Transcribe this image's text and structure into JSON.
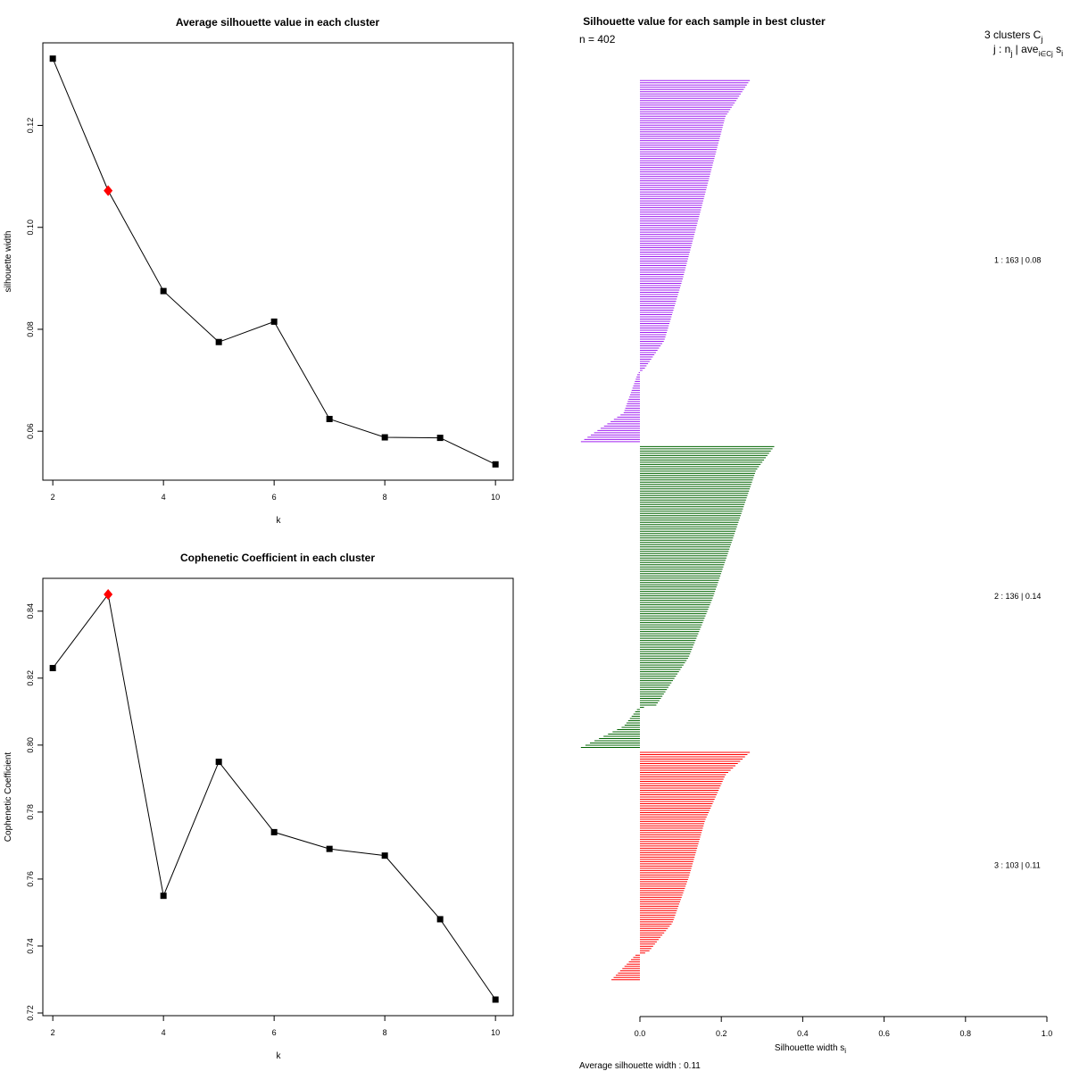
{
  "chart_data": [
    {
      "type": "line",
      "title": "Average silhouette value in each cluster",
      "xlabel": "k",
      "ylabel": "silhouette width",
      "x": [
        2,
        3,
        4,
        5,
        6,
        7,
        8,
        9,
        10
      ],
      "y": [
        0.1331,
        0.1072,
        0.0875,
        0.0775,
        0.0815,
        0.0624,
        0.0588,
        0.0587,
        0.0535
      ],
      "highlight_x": 3,
      "highlight_color": "#ff0000",
      "xlim": [
        1.82,
        10.32
      ],
      "ylim": [
        0.0504,
        0.1362
      ],
      "xticks": [
        2,
        4,
        6,
        8,
        10
      ],
      "yticks": [
        0.06,
        0.08,
        0.1,
        0.12
      ],
      "ytick_labels": [
        "0.06",
        "0.08",
        "0.10",
        "0.12"
      ]
    },
    {
      "type": "line",
      "title": "Cophenetic Coefficient in each cluster",
      "xlabel": "k",
      "ylabel": "Cophenetic Coefficient",
      "x": [
        2,
        3,
        4,
        5,
        6,
        7,
        8,
        9,
        10
      ],
      "y": [
        0.823,
        0.845,
        0.755,
        0.795,
        0.774,
        0.769,
        0.767,
        0.748,
        0.724
      ],
      "highlight_x": 3,
      "highlight_color": "#ff0000",
      "xlim": [
        1.82,
        10.32
      ],
      "ylim": [
        0.7192,
        0.8498
      ],
      "xticks": [
        2,
        4,
        6,
        8,
        10
      ],
      "yticks": [
        0.72,
        0.74,
        0.76,
        0.78,
        0.8,
        0.82,
        0.84
      ],
      "ytick_labels": [
        "0.72",
        "0.74",
        "0.76",
        "0.78",
        "0.80",
        "0.82",
        "0.84"
      ]
    },
    {
      "type": "bar",
      "orientation": "horizontal",
      "title": "Silhouette value for each sample in best cluster",
      "n_label": "n = 402",
      "xlabel_main": "Silhouette width s",
      "xlabel_sub": "i",
      "xlim": [
        0,
        1
      ],
      "xticks": [
        0.0,
        0.2,
        0.4,
        0.6,
        0.8,
        1.0
      ],
      "xtick_labels": [
        "0.0",
        "0.2",
        "0.4",
        "0.6",
        "0.8",
        "1.0"
      ],
      "header_line1": "3  clusters  C",
      "header_line1_sub": "j",
      "header_line2": "j :  n",
      "header_line2_sub": "j",
      "header_line2_rest": " | ave",
      "header_line2_sub2": "i∈Cj",
      "header_line2_end": "  s",
      "header_line2_sub3": "i",
      "footer": "Average silhouette width :  0.11",
      "clusters": [
        {
          "id": 1,
          "label": "1 :   163  |  0.08",
          "color": "#a020f0",
          "n": 163,
          "profile": [
            [
              0,
              0.27
            ],
            [
              0.1,
              0.21
            ],
            [
              0.25,
              0.175
            ],
            [
              0.4,
              0.14
            ],
            [
              0.55,
              0.105
            ],
            [
              0.72,
              0.06
            ],
            [
              0.8,
              0.01
            ],
            [
              0.81,
              -0.005
            ],
            [
              0.92,
              -0.04
            ],
            [
              1.0,
              -0.145
            ]
          ]
        },
        {
          "id": 2,
          "label": "2 :   136  |  0.14",
          "color": "#006400",
          "n": 136,
          "profile": [
            [
              0,
              0.33
            ],
            [
              0.08,
              0.285
            ],
            [
              0.3,
              0.23
            ],
            [
              0.5,
              0.18
            ],
            [
              0.7,
              0.12
            ],
            [
              0.86,
              0.04
            ],
            [
              0.87,
              -0.005
            ],
            [
              0.93,
              -0.04
            ],
            [
              1.0,
              -0.145
            ]
          ]
        },
        {
          "id": 3,
          "label": "3 :   103  |  0.11",
          "color": "#ff0000",
          "n": 103,
          "profile": [
            [
              0,
              0.27
            ],
            [
              0.1,
              0.21
            ],
            [
              0.3,
              0.16
            ],
            [
              0.55,
              0.12
            ],
            [
              0.75,
              0.08
            ],
            [
              0.88,
              0.02
            ],
            [
              0.89,
              -0.01
            ],
            [
              1.0,
              -0.07
            ]
          ]
        }
      ]
    }
  ]
}
